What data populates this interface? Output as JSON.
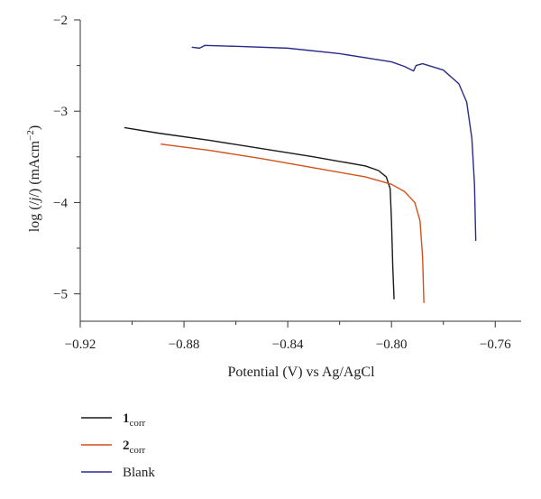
{
  "chart_data": {
    "type": "line",
    "title": "",
    "xlabel": "Potential (V) vs Ag/AgCl",
    "ylabel": {
      "prefix": "log (/",
      "j": "j",
      "mid": "/) (mAcm",
      "sup": "−2",
      "suffix": ")"
    },
    "xlim": [
      -0.92,
      -0.75
    ],
    "ylim": [
      -5.3,
      -2.0
    ],
    "xticks": [
      -0.92,
      -0.88,
      -0.84,
      -0.8,
      -0.76
    ],
    "xtick_labels": [
      "−0.92",
      "−0.88",
      "−0.84",
      "−0.80",
      "−0.76"
    ],
    "yticks": [
      -2,
      -3,
      -4,
      -5
    ],
    "ytick_labels": [
      "−2",
      "−3",
      "−4",
      "−5"
    ],
    "legend_position": "bottom-left, below plot",
    "series": [
      {
        "name": "corr",
        "legend_main": "1",
        "legend_sub": "corr",
        "color": "#1a1a1a",
        "points": [
          [
            -0.903,
            -3.18
          ],
          [
            -0.89,
            -3.24
          ],
          [
            -0.87,
            -3.32
          ],
          [
            -0.85,
            -3.41
          ],
          [
            -0.83,
            -3.5
          ],
          [
            -0.82,
            -3.55
          ],
          [
            -0.81,
            -3.6
          ],
          [
            -0.805,
            -3.65
          ],
          [
            -0.802,
            -3.72
          ],
          [
            -0.8005,
            -3.85
          ],
          [
            -0.8,
            -4.2
          ],
          [
            -0.7995,
            -4.7
          ],
          [
            -0.799,
            -5.06
          ]
        ]
      },
      {
        "name": "corr",
        "legend_main": "2",
        "legend_sub": "corr",
        "color": "#d2511b",
        "points": [
          [
            -0.889,
            -3.36
          ],
          [
            -0.87,
            -3.43
          ],
          [
            -0.85,
            -3.52
          ],
          [
            -0.83,
            -3.62
          ],
          [
            -0.81,
            -3.72
          ],
          [
            -0.8,
            -3.8
          ],
          [
            -0.795,
            -3.88
          ],
          [
            -0.791,
            -4.0
          ],
          [
            -0.789,
            -4.2
          ],
          [
            -0.788,
            -4.6
          ],
          [
            -0.7875,
            -5.1
          ]
        ]
      },
      {
        "name": "Blank",
        "legend_main": "Blank",
        "legend_sub": "",
        "color": "#2b2a8a",
        "points": [
          [
            -0.877,
            -2.3
          ],
          [
            -0.874,
            -2.31
          ],
          [
            -0.872,
            -2.28
          ],
          [
            -0.86,
            -2.29
          ],
          [
            -0.84,
            -2.31
          ],
          [
            -0.82,
            -2.37
          ],
          [
            -0.8,
            -2.46
          ],
          [
            -0.795,
            -2.51
          ],
          [
            -0.7915,
            -2.56
          ],
          [
            -0.7905,
            -2.5
          ],
          [
            -0.788,
            -2.48
          ],
          [
            -0.78,
            -2.55
          ],
          [
            -0.774,
            -2.7
          ],
          [
            -0.771,
            -2.9
          ],
          [
            -0.769,
            -3.3
          ],
          [
            -0.768,
            -3.8
          ],
          [
            -0.7675,
            -4.42
          ]
        ]
      }
    ]
  }
}
